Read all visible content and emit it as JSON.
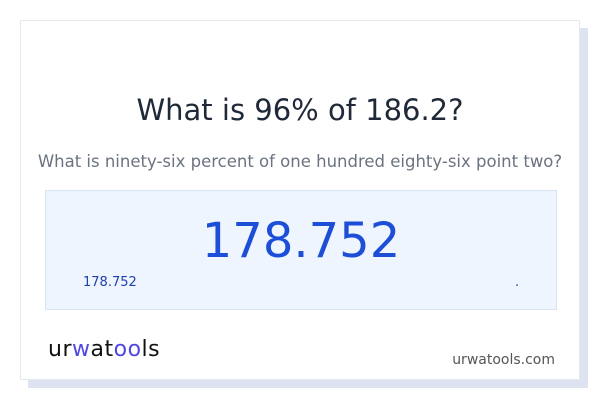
{
  "title": "What is 96% of 186.2?",
  "subtitle": "What is ninety-six percent of one hundred eighty-six point two?",
  "result": {
    "value": "178.752",
    "small_value": "178.752",
    "trailing": "."
  },
  "footer": {
    "logo_text": "urwatools",
    "logo_prefix": "ur",
    "logo_accent": "w",
    "logo_mid": "at",
    "logo_accent2": "oo",
    "logo_suffix": "ls",
    "site": "urwatools.com"
  },
  "colors": {
    "accent": "#1d4ed8",
    "result_bg": "#eef5ff",
    "logo_accent": "#4f46e5"
  }
}
